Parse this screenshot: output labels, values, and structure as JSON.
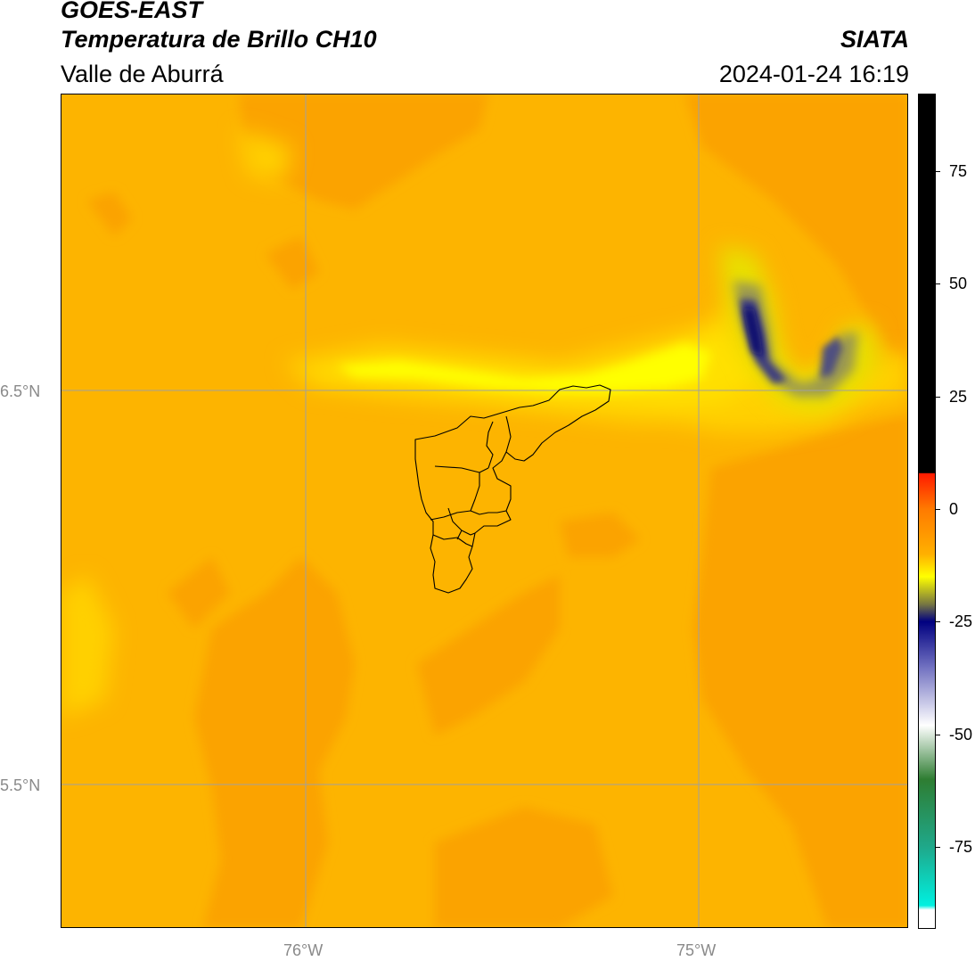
{
  "header": {
    "satellite": "GOES-EAST",
    "product": "Temperatura de Brillo CH10",
    "region": "Valle de Aburrá",
    "organization": "SIATA",
    "datetime": "2024-01-24 16:19"
  },
  "map": {
    "lat_labels": [
      "6.5°N",
      "5.5°N"
    ],
    "lon_labels": [
      "76°W",
      "75°W"
    ],
    "background_color": "#fdb400",
    "gridline_color": "#a0a0a0",
    "boundary_color": "#000000"
  },
  "colorbar": {
    "ticks": [
      "75",
      "50",
      "25",
      "0",
      "-25",
      "-50",
      "-75"
    ],
    "tick_values": [
      75,
      50,
      25,
      0,
      -25,
      -50,
      -75
    ],
    "range": [
      -93,
      92
    ],
    "stops": [
      {
        "value": 92,
        "color": "#000000"
      },
      {
        "value": 8,
        "color": "#000000"
      },
      {
        "value": 7.9,
        "color": "#ff1a00"
      },
      {
        "value": 0,
        "color": "#ff7a00"
      },
      {
        "value": -10,
        "color": "#ffb000"
      },
      {
        "value": -15,
        "color": "#ffff00"
      },
      {
        "value": -21,
        "color": "#7a7a40"
      },
      {
        "value": -25,
        "color": "#000080"
      },
      {
        "value": -35,
        "color": "#7070c0"
      },
      {
        "value": -48,
        "color": "#ffffff"
      },
      {
        "value": -60,
        "color": "#2e7d32"
      },
      {
        "value": -75,
        "color": "#1fa88a"
      },
      {
        "value": -88,
        "color": "#00f0e0"
      },
      {
        "value": -89,
        "color": "#ffffff"
      },
      {
        "value": -93,
        "color": "#ffffff"
      }
    ]
  }
}
